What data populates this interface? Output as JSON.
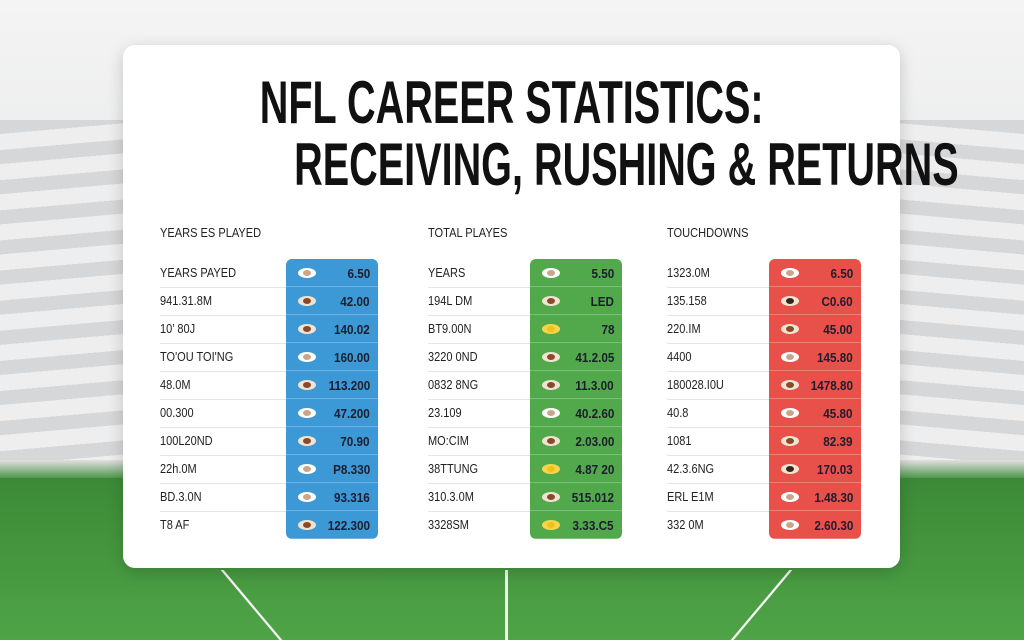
{
  "title": {
    "line1": "NFL CAREER STATISTICS:",
    "line2": "RECEIVING, RUSHING & RETURNS"
  },
  "colors": {
    "blue": "#3d98d6",
    "green": "#52a94c",
    "red": "#e8504a"
  },
  "columns": [
    {
      "header": "YEARS ES PLAYED",
      "color": "#3d98d6",
      "labels": [
        "YEARS PAYED",
        "941.31.8M",
        "10’ 80J",
        "TO'OU TOI'NG",
        "48.0M",
        "00.300",
        "100L20ND",
        "22h.0M",
        "BD.3.0N",
        "T8 AF"
      ],
      "values": [
        "6.50",
        "42.00",
        "140.02",
        "160.00",
        "113.200",
        "47.200",
        "70.90",
        "P8.330",
        "93.316",
        "122.300"
      ],
      "balls": [
        "white",
        "brown",
        "brown",
        "white",
        "brown",
        "white",
        "brown",
        "white",
        "white",
        "brown"
      ]
    },
    {
      "header": "TOTAL PLAYES",
      "color": "#52a94c",
      "labels": [
        "YEARS",
        "194L DM",
        "BT9.00N",
        "3220 0ND",
        "0832 8NG",
        "23.109",
        "MO:CIM",
        "38TTUNG",
        "310.3.0M",
        "3328SM"
      ],
      "values": [
        "5.50",
        "LED",
        "78",
        "41.2.05",
        "11.3.00",
        "40.2.60",
        "2.03.00",
        "4.87 20",
        "515.012",
        "3.33.C5"
      ],
      "balls": [
        "white",
        "brown",
        "yellow",
        "brown",
        "brown",
        "white",
        "brown",
        "yellow",
        "brown",
        "yellow"
      ]
    },
    {
      "header": "TOUCHDOWNS",
      "color": "#e8504a",
      "labels": [
        "1323.0M",
        "135.158",
        "220.IM",
        "4400",
        "180028.I0U",
        "40.8",
        "1081",
        "42.3.6NG",
        "ERL E1M",
        "332 0M"
      ],
      "values": [
        "6.50",
        "C0.60",
        "45.00",
        "145.80",
        "1478.80",
        "45.80",
        "82.39",
        "170.03",
        "1.48.30",
        "2.60.30"
      ],
      "balls": [
        "white",
        "dark",
        "brown",
        "white",
        "brown",
        "white",
        "brown",
        "dark",
        "white",
        "white"
      ]
    }
  ]
}
